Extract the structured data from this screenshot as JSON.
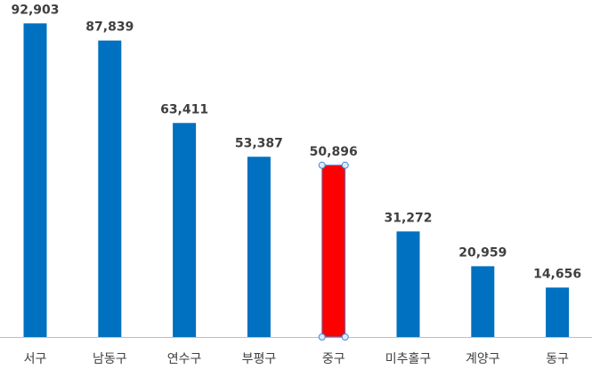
{
  "chart_data": {
    "type": "bar",
    "categories": [
      "서구",
      "남동구",
      "연수구",
      "부평구",
      "중구",
      "미추홀구",
      "계양구",
      "동구"
    ],
    "values": [
      92903,
      87839,
      63411,
      53387,
      50896,
      31272,
      20959,
      14656
    ],
    "data_labels": [
      "92,903",
      "87,839",
      "63,411",
      "53,387",
      "50,896",
      "31,272",
      "20,959",
      "14,656"
    ],
    "ylim": [
      0,
      100000
    ],
    "grid": false,
    "legend": "none",
    "colors": {
      "bar": "#0070c0",
      "highlight": "#ff0000",
      "selection": "#4a8ad4",
      "axis": "#bfbfbf",
      "text": "#404040"
    },
    "highlight_index": 4,
    "selected_index": 4
  }
}
